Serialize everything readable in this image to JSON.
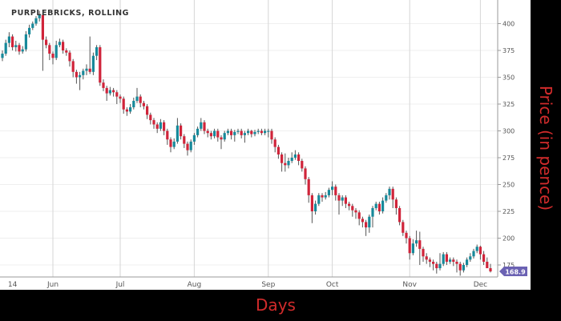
{
  "chart_data": {
    "type": "candlestick",
    "title": "PURPLEBRICKS, ROLLING",
    "xlabel": "Days",
    "ylabel": "Price (in pence)",
    "ylim": [
      163,
      412
    ],
    "yticks": [
      175,
      200,
      225,
      250,
      275,
      300,
      325,
      350,
      375,
      400
    ],
    "xticks": [
      {
        "label": "14",
        "index": 3
      },
      {
        "label": "Jun",
        "index": 15
      },
      {
        "label": "Jul",
        "index": 35
      },
      {
        "label": "Aug",
        "index": 57
      },
      {
        "label": "Sep",
        "index": 79
      },
      {
        "label": "Oct",
        "index": 98
      },
      {
        "label": "Nov",
        "index": 121
      },
      {
        "label": "Dec",
        "index": 142
      }
    ],
    "grid": true,
    "last_price": "168.9",
    "colors": {
      "up": "#17899a",
      "down": "#d0243a",
      "wick": "#555555",
      "badge": "#6b62b3",
      "axis_label": "#d12b2b"
    },
    "candles_ohlc": [
      [
        368,
        375,
        365,
        372
      ],
      [
        372,
        385,
        370,
        382
      ],
      [
        382,
        392,
        378,
        388
      ],
      [
        388,
        390,
        375,
        378
      ],
      [
        378,
        384,
        374,
        380
      ],
      [
        380,
        382,
        371,
        374
      ],
      [
        374,
        379,
        372,
        376
      ],
      [
        376,
        393,
        374,
        390
      ],
      [
        390,
        399,
        387,
        396
      ],
      [
        396,
        402,
        394,
        400
      ],
      [
        400,
        407,
        398,
        405
      ],
      [
        405,
        412,
        402,
        408
      ],
      [
        408,
        410,
        356,
        385
      ],
      [
        385,
        388,
        377,
        380
      ],
      [
        380,
        382,
        366,
        372
      ],
      [
        372,
        374,
        362,
        368
      ],
      [
        368,
        384,
        366,
        380
      ],
      [
        380,
        386,
        378,
        383
      ],
      [
        383,
        385,
        372,
        375
      ],
      [
        375,
        377,
        370,
        373
      ],
      [
        373,
        375,
        360,
        365
      ],
      [
        365,
        367,
        350,
        355
      ],
      [
        355,
        357,
        344,
        350
      ],
      [
        350,
        355,
        338,
        352
      ],
      [
        352,
        358,
        348,
        356
      ],
      [
        356,
        362,
        352,
        358
      ],
      [
        358,
        388,
        353,
        355
      ],
      [
        355,
        373,
        352,
        370
      ],
      [
        370,
        380,
        366,
        378
      ],
      [
        378,
        380,
        342,
        345
      ],
      [
        345,
        348,
        337,
        340
      ],
      [
        340,
        342,
        328,
        335
      ],
      [
        335,
        341,
        333,
        338
      ],
      [
        338,
        340,
        332,
        336
      ],
      [
        336,
        338,
        325,
        332
      ],
      [
        332,
        334,
        326,
        330
      ],
      [
        330,
        332,
        316,
        320
      ],
      [
        320,
        322,
        314,
        318
      ],
      [
        318,
        325,
        316,
        322
      ],
      [
        322,
        331,
        320,
        328
      ],
      [
        328,
        340,
        326,
        332
      ],
      [
        332,
        334,
        322,
        326
      ],
      [
        326,
        328,
        320,
        323
      ],
      [
        323,
        325,
        311,
        315
      ],
      [
        315,
        317,
        306,
        310
      ],
      [
        310,
        312,
        302,
        306
      ],
      [
        306,
        308,
        298,
        302
      ],
      [
        302,
        311,
        300,
        308
      ],
      [
        308,
        310,
        296,
        300
      ],
      [
        300,
        302,
        287,
        292
      ],
      [
        292,
        294,
        280,
        285
      ],
      [
        285,
        293,
        283,
        290
      ],
      [
        290,
        312,
        288,
        305
      ],
      [
        305,
        307,
        292,
        295
      ],
      [
        295,
        297,
        284,
        288
      ],
      [
        288,
        290,
        277,
        282
      ],
      [
        282,
        292,
        280,
        290
      ],
      [
        290,
        298,
        287,
        296
      ],
      [
        296,
        304,
        294,
        302
      ],
      [
        302,
        312,
        300,
        308
      ],
      [
        308,
        310,
        297,
        300
      ],
      [
        300,
        302,
        294,
        298
      ],
      [
        298,
        300,
        292,
        295
      ],
      [
        295,
        302,
        293,
        300
      ],
      [
        300,
        302,
        290,
        294
      ],
      [
        294,
        296,
        283,
        292
      ],
      [
        292,
        300,
        290,
        298
      ],
      [
        298,
        302,
        296,
        300
      ],
      [
        300,
        302,
        292,
        296
      ],
      [
        296,
        301,
        290,
        299
      ],
      [
        299,
        302,
        297,
        300
      ],
      [
        300,
        302,
        293,
        296
      ],
      [
        296,
        300,
        289,
        298
      ],
      [
        298,
        302,
        296,
        300
      ],
      [
        300,
        301,
        294,
        297
      ],
      [
        297,
        301,
        295,
        299
      ],
      [
        299,
        302,
        297,
        300
      ],
      [
        300,
        302,
        296,
        298
      ],
      [
        298,
        302,
        296,
        300
      ],
      [
        300,
        302,
        294,
        300
      ],
      [
        300,
        302,
        288,
        292
      ],
      [
        292,
        294,
        280,
        285
      ],
      [
        285,
        287,
        274,
        278
      ],
      [
        278,
        280,
        262,
        270
      ],
      [
        270,
        279,
        262,
        268
      ],
      [
        268,
        275,
        265,
        272
      ],
      [
        272,
        280,
        270,
        275
      ],
      [
        275,
        282,
        273,
        278
      ],
      [
        278,
        280,
        268,
        272
      ],
      [
        272,
        274,
        262,
        265
      ],
      [
        265,
        267,
        250,
        255
      ],
      [
        255,
        257,
        233,
        240
      ],
      [
        240,
        242,
        214,
        225
      ],
      [
        225,
        235,
        222,
        232
      ],
      [
        232,
        242,
        230,
        240
      ],
      [
        240,
        242,
        234,
        238
      ],
      [
        238,
        243,
        236,
        240
      ],
      [
        240,
        247,
        238,
        245
      ],
      [
        245,
        253,
        240,
        248
      ],
      [
        248,
        250,
        235,
        240
      ],
      [
        240,
        242,
        222,
        235
      ],
      [
        235,
        240,
        230,
        238
      ],
      [
        238,
        240,
        228,
        232
      ],
      [
        232,
        234,
        226,
        230
      ],
      [
        230,
        232,
        220,
        226
      ],
      [
        226,
        228,
        218,
        224
      ],
      [
        224,
        226,
        212,
        218
      ],
      [
        218,
        220,
        210,
        215
      ],
      [
        215,
        217,
        202,
        210
      ],
      [
        210,
        222,
        205,
        220
      ],
      [
        220,
        230,
        210,
        228
      ],
      [
        228,
        234,
        226,
        232
      ],
      [
        232,
        234,
        222,
        225
      ],
      [
        225,
        238,
        223,
        235
      ],
      [
        235,
        242,
        233,
        240
      ],
      [
        240,
        248,
        236,
        246
      ],
      [
        246,
        248,
        228,
        236
      ],
      [
        236,
        238,
        222,
        228
      ],
      [
        228,
        230,
        212,
        215
      ],
      [
        215,
        217,
        202,
        205
      ],
      [
        205,
        207,
        195,
        200
      ],
      [
        200,
        202,
        180,
        186
      ],
      [
        186,
        199,
        184,
        195
      ],
      [
        195,
        207,
        192,
        198
      ],
      [
        198,
        206,
        175,
        190
      ],
      [
        190,
        192,
        178,
        183
      ],
      [
        183,
        186,
        176,
        180
      ],
      [
        180,
        182,
        173,
        178
      ],
      [
        178,
        180,
        170,
        176
      ],
      [
        176,
        178,
        167,
        172
      ],
      [
        172,
        186,
        170,
        176
      ],
      [
        176,
        187,
        174,
        185
      ],
      [
        185,
        187,
        175,
        178
      ],
      [
        178,
        182,
        176,
        180
      ],
      [
        180,
        182,
        174,
        178
      ],
      [
        178,
        180,
        168,
        176
      ],
      [
        176,
        178,
        165,
        170
      ],
      [
        170,
        177,
        168,
        175
      ],
      [
        175,
        182,
        173,
        180
      ],
      [
        180,
        186,
        178,
        183
      ],
      [
        183,
        190,
        181,
        188
      ],
      [
        188,
        194,
        186,
        192
      ],
      [
        192,
        193,
        180,
        185
      ],
      [
        185,
        188,
        175,
        178
      ],
      [
        178,
        182,
        172,
        172
      ],
      [
        172,
        176,
        168,
        169
      ]
    ]
  }
}
